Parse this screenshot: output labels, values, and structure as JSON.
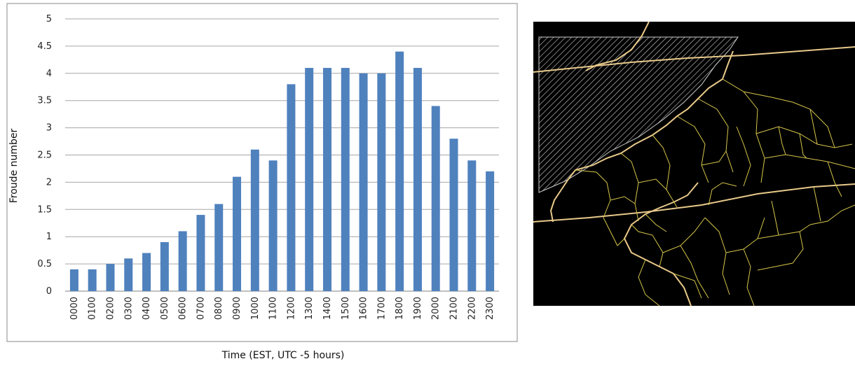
{
  "chart_data": {
    "type": "bar",
    "xlabel": "Time (EST, UTC -5 hours)",
    "ylabel": "Froude number",
    "ylim": [
      0,
      5
    ],
    "yticks": [
      "0",
      "0.5",
      "1",
      "1.5",
      "2",
      "2.5",
      "3",
      "3.5",
      "4",
      "4.5",
      "5"
    ],
    "grid": true,
    "legend": "none",
    "bar_color": "#4f81bd",
    "categories": [
      "0000",
      "0100",
      "0200",
      "0300",
      "0400",
      "0500",
      "0600",
      "0700",
      "0800",
      "0900",
      "1000",
      "1100",
      "1200",
      "1300",
      "1400",
      "1500",
      "1600",
      "1700",
      "1800",
      "1900",
      "2000",
      "2100",
      "2200",
      "2300"
    ],
    "values": [
      0.4,
      0.4,
      0.5,
      0.6,
      0.7,
      0.9,
      1.1,
      1.4,
      1.6,
      2.1,
      2.6,
      2.4,
      3.8,
      4.1,
      4.1,
      4.1,
      4.0,
      4.0,
      4.4,
      4.1,
      3.4,
      2.8,
      2.4,
      2.2
    ]
  },
  "map": {
    "background": "#000000",
    "county_color": "#d6c64a",
    "state_color": "#e8c98a",
    "hatch_color": "#cfcfcf"
  }
}
